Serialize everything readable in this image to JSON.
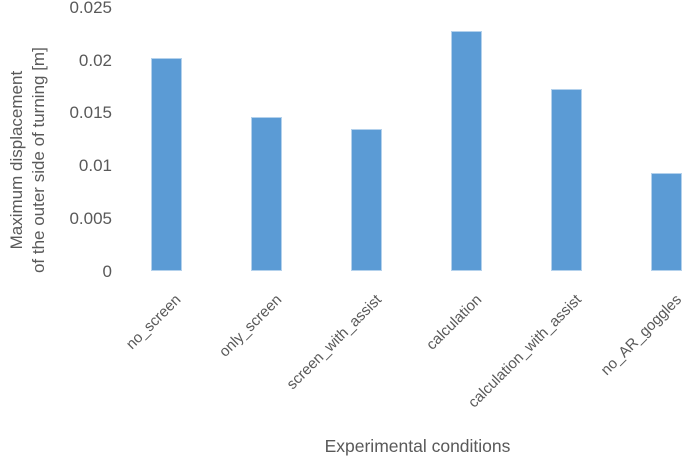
{
  "chart_data": {
    "type": "bar",
    "title": "",
    "xlabel": "Experimental conditions",
    "ylabel_line1": "Maximum displacement",
    "ylabel_line2": "of the outer side of turning [m]",
    "categories": [
      "no_screen",
      "only_screen",
      "screen_with_assist",
      "calculation",
      "calculation_with_assist",
      "no_AR_goggles"
    ],
    "values": [
      0.0202,
      0.0146,
      0.0135,
      0.0228,
      0.0173,
      0.0093
    ],
    "ylim": [
      0,
      0.025
    ],
    "yticks": [
      0,
      0.005,
      0.01,
      0.015,
      0.02,
      0.025
    ],
    "ytick_labels": [
      "0",
      "0.005",
      "0.01",
      "0.015",
      "0.02",
      "0.025"
    ],
    "grid": false,
    "legend": "none",
    "bar_color": "#5b9bd5",
    "text_color": "#595959"
  }
}
